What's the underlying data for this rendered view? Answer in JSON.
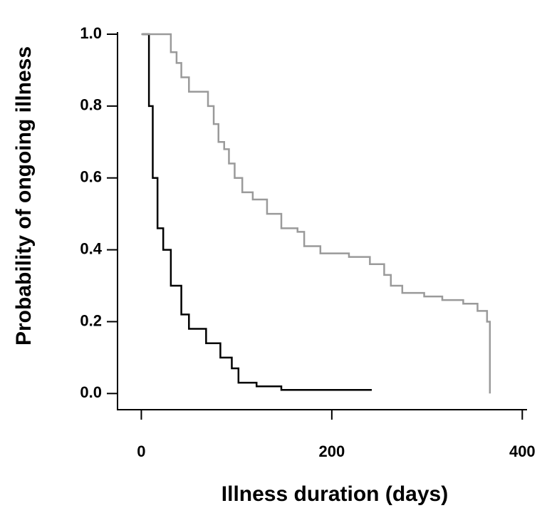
{
  "chart_data": {
    "type": "step",
    "x_label": "Illness duration (days)",
    "y_label": "Probability of ongoing illness",
    "xlim": [
      -25,
      405
    ],
    "ylim": [
      -0.045,
      1.0
    ],
    "xticks": [
      0,
      200,
      400
    ],
    "yticks": [
      {
        "value": 0,
        "label": "0.0"
      },
      0.2,
      0.4,
      0.6,
      0.8,
      {
        "value": 1,
        "label": "1.0"
      }
    ],
    "series": [
      {
        "color": "#000000",
        "x": [
          1,
          8,
          12,
          17,
          23,
          31,
          42,
          50,
          68,
          83,
          95,
          102,
          121,
          147,
          242
        ],
        "values": [
          1.0,
          0.8,
          0.6,
          0.46,
          0.4,
          0.3,
          0.22,
          0.18,
          0.14,
          0.1,
          0.07,
          0.03,
          0.02,
          0.01,
          0.01
        ]
      },
      {
        "color": "#9a9a9a",
        "x": [
          0,
          27,
          31,
          37,
          42,
          50,
          65,
          70,
          76,
          81,
          87,
          92,
          98,
          106,
          117,
          132,
          147,
          164,
          171,
          188,
          218,
          240,
          255,
          262,
          274,
          297,
          316,
          338,
          353,
          363,
          366
        ],
        "values": [
          1.0,
          1.0,
          0.95,
          0.92,
          0.88,
          0.84,
          0.84,
          0.8,
          0.75,
          0.7,
          0.68,
          0.64,
          0.6,
          0.56,
          0.54,
          0.5,
          0.46,
          0.45,
          0.41,
          0.39,
          0.38,
          0.36,
          0.33,
          0.3,
          0.28,
          0.27,
          0.26,
          0.25,
          0.23,
          0.2,
          0.0
        ]
      }
    ]
  }
}
